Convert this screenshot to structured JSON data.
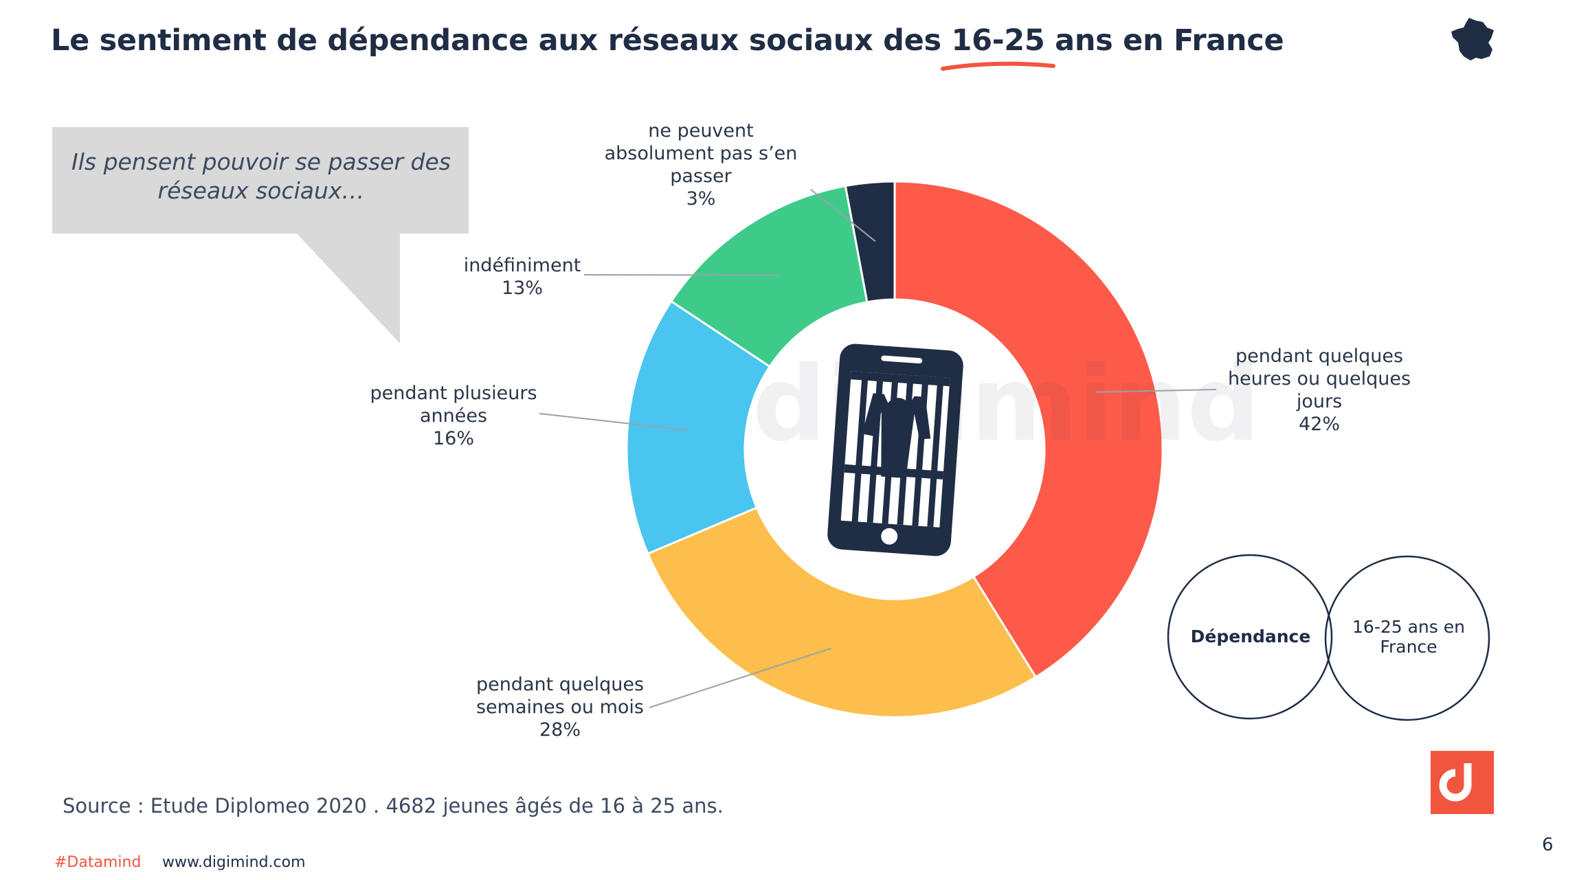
{
  "header": {
    "title": "Le sentiment de dépendance aux réseaux sociaux des 16-25 ans en France"
  },
  "speech_bubble": {
    "text": "Ils pensent pouvoir se passer des réseaux  sociaux…"
  },
  "chart_data": {
    "type": "pie",
    "title": "",
    "slices": [
      {
        "label": "pendant quelques heures ou quelques jours",
        "value": 42,
        "value_label": "42%",
        "color": "#fe5a4a"
      },
      {
        "label": "pendant quelques semaines ou mois",
        "value": 28,
        "value_label": "28%",
        "color": "#fdbe4b"
      },
      {
        "label": "pendant plusieurs années",
        "value": 16,
        "value_label": "16%",
        "color": "#4ac5ef"
      },
      {
        "label": "indéfiniment",
        "value": 13,
        "value_label": "13%",
        "color": "#3ecb8a"
      },
      {
        "label": "ne peuvent absolument pas s'en passer",
        "value": 3,
        "value_label": "3%",
        "color": "#1f2d45"
      }
    ]
  },
  "labels": {
    "heures_l1": "pendant quelques",
    "heures_l2": "heures ou quelques",
    "heures_l3": "jours",
    "semaines_l1": "pendant quelques",
    "semaines_l2": "semaines ou mois",
    "annees_l1": "pendant plusieurs",
    "annees_l2": "années",
    "indef_l1": "indéfiniment",
    "nepeuvent_l1": "ne peuvent",
    "nepeuvent_l2": "absolument pas s’en",
    "nepeuvent_l3": "passer"
  },
  "venn": {
    "left": "Dépendance",
    "right_l1": "16-25 ans en",
    "right_l2": "France"
  },
  "footer": {
    "source": "Source : Etude Diplomeo 2020 . 4682 jeunes âgés de 16 à 25 ans.",
    "hashtag": "#Datamind",
    "website": "www.digimind.com",
    "page": "6"
  },
  "colors": {
    "accent": "#f2553e",
    "navy": "#1f2d45"
  }
}
